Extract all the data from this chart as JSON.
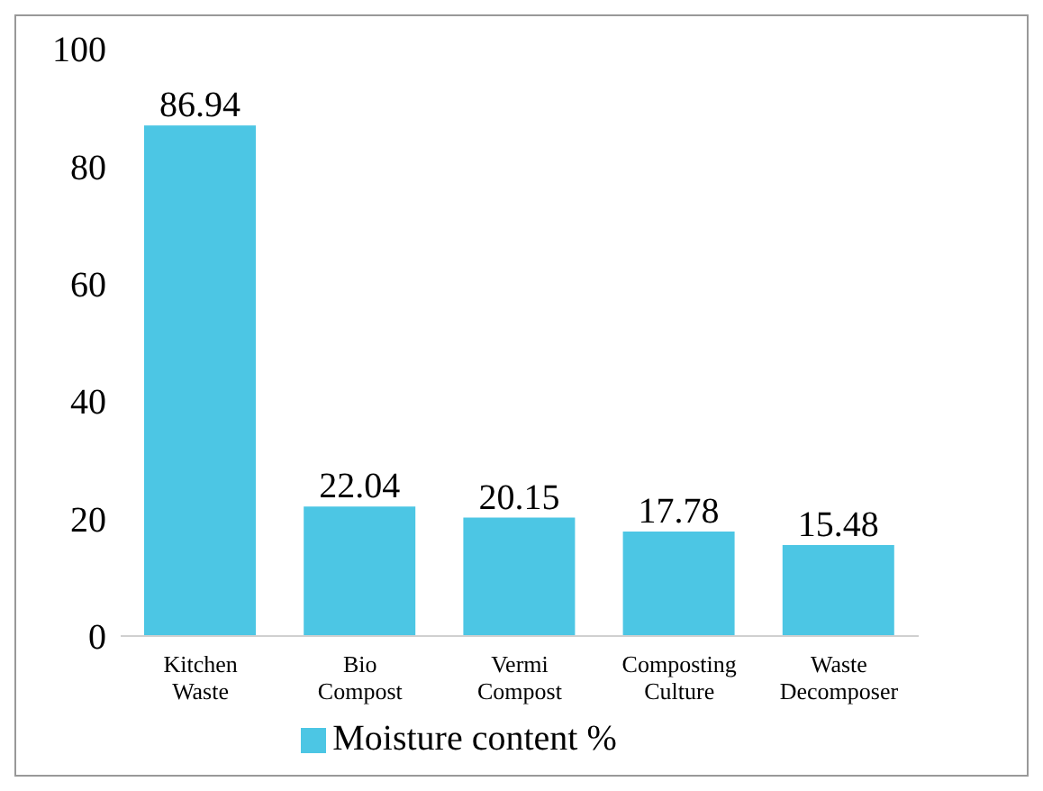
{
  "chart_data": {
    "type": "bar",
    "categories": [
      "Kitchen Waste",
      "Bio Compost",
      "Vermi Compost",
      "Composting Culture",
      "Waste Decomposer"
    ],
    "series": [
      {
        "name": "Moisture content %",
        "color": "#4cc6e4",
        "values": [
          86.94,
          22.04,
          20.15,
          17.78,
          15.48
        ]
      }
    ],
    "ylim": [
      0,
      100
    ],
    "yticks": [
      0,
      20,
      40,
      60,
      80,
      100
    ],
    "grid": false,
    "legend": "bottom",
    "data_labels": true
  }
}
